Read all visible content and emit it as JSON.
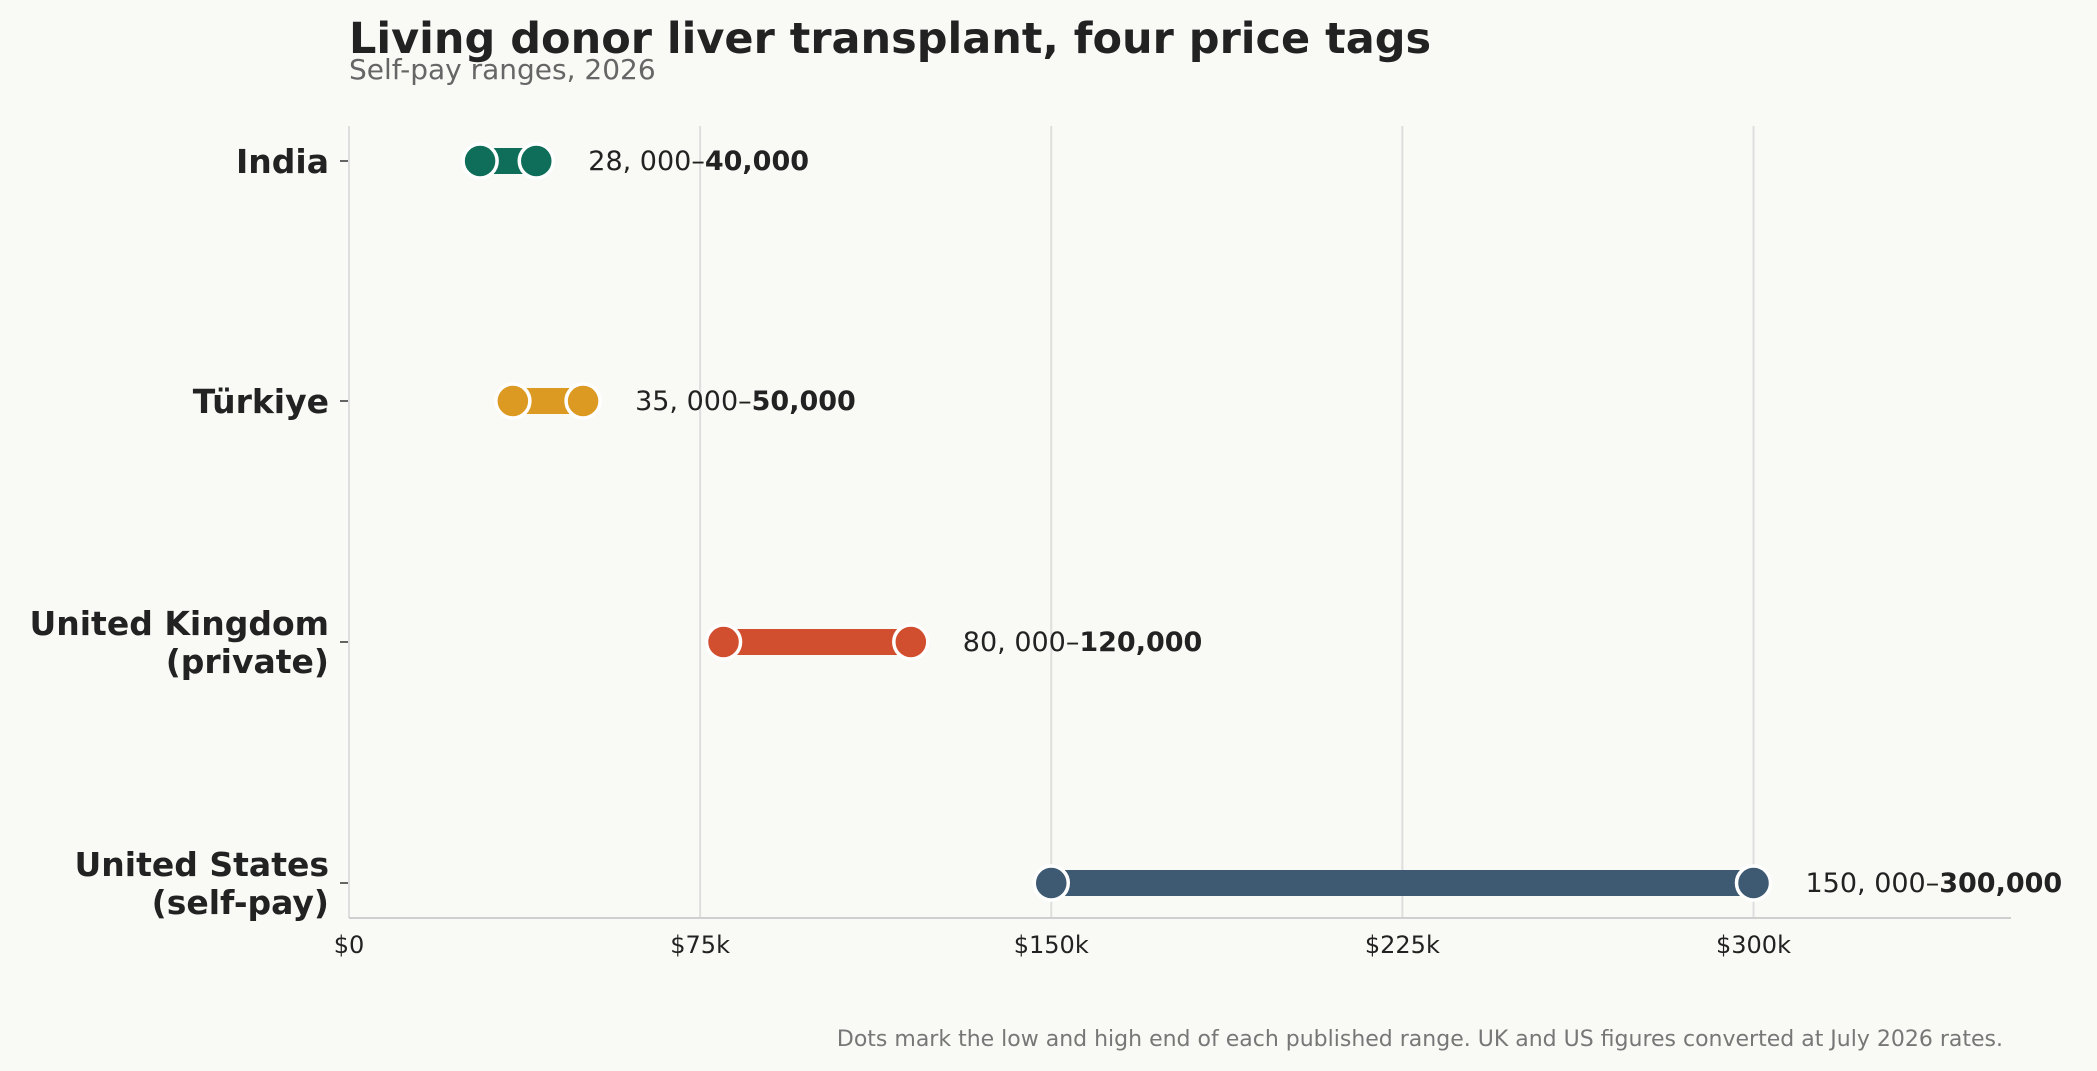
{
  "chart_data": {
    "type": "dumbbell",
    "title": "Living donor liver transplant, four price tags",
    "subtitle": "Self-pay ranges, 2026",
    "xlabel": "",
    "ylabel": "",
    "xlim": [
      0,
      355000
    ],
    "grid": "vertical",
    "x_ticks": [
      {
        "value": 0,
        "label": "$0"
      },
      {
        "value": 75000,
        "label": "$75k"
      },
      {
        "value": 150000,
        "label": "$150k"
      },
      {
        "value": 225000,
        "label": "$225k"
      },
      {
        "value": 300000,
        "label": "$300k"
      }
    ],
    "categories": [
      {
        "label_lines": [
          "India"
        ],
        "low": 28000,
        "high": 40000,
        "color": "#0f6e5a",
        "label_low": "28, 000–",
        "label_high": "40,000"
      },
      {
        "label_lines": [
          "Türkiye"
        ],
        "low": 35000,
        "high": 50000,
        "color": "#dc9a22",
        "label_low": "35, 000–",
        "label_high": "50,000"
      },
      {
        "label_lines": [
          "United Kingdom",
          "(private)"
        ],
        "low": 80000,
        "high": 120000,
        "color": "#d14f2e",
        "label_low": "80, 000–",
        "label_high": "120,000"
      },
      {
        "label_lines": [
          "United States",
          "(self-pay)"
        ],
        "low": 150000,
        "high": 300000,
        "color": "#3e5a73",
        "label_low": "150, 000–",
        "label_high": "300,000"
      }
    ],
    "footnote": "Dots mark the low and high end of each published range. UK and US figures converted at July 2026 rates."
  },
  "colors": {
    "background": "#f9f9f5",
    "grid": "#dedede",
    "axis": "#cfcfcf",
    "text": "#222222"
  }
}
